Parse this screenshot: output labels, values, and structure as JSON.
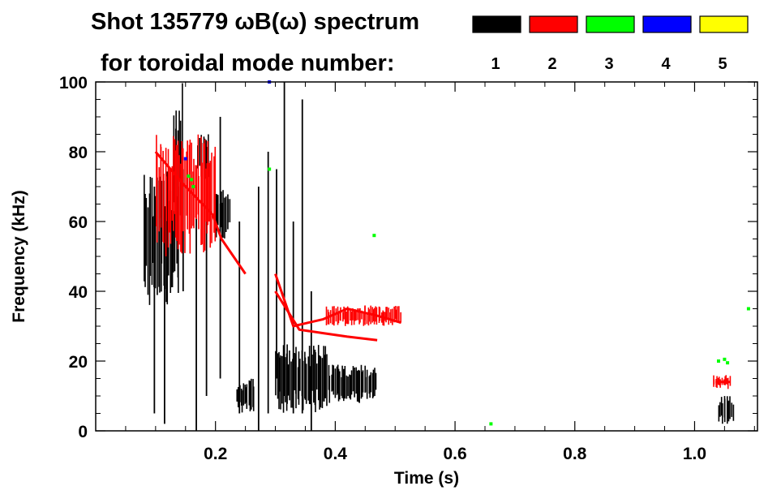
{
  "chart_data": {
    "type": "scatter",
    "title_line1": "Shot 135779 ωB(ω) spectrum",
    "title_line2": "for toroidal mode number:",
    "xlabel": "Time (s)",
    "ylabel": "Frequency (kHz)",
    "xlim": [
      0.0,
      1.105
    ],
    "ylim": [
      0,
      100
    ],
    "x_ticks": [
      {
        "value": 0.2,
        "label": "0.2"
      },
      {
        "value": 0.4,
        "label": "0.4"
      },
      {
        "value": 0.6,
        "label": "0.6"
      },
      {
        "value": 0.8,
        "label": "0.8"
      },
      {
        "value": 1.0,
        "label": "1.0"
      }
    ],
    "y_ticks": [
      {
        "value": 0,
        "label": "0"
      },
      {
        "value": 20,
        "label": "20"
      },
      {
        "value": 40,
        "label": "40"
      },
      {
        "value": 60,
        "label": "60"
      },
      {
        "value": 80,
        "label": "80"
      },
      {
        "value": 100,
        "label": "100"
      }
    ],
    "grid": false,
    "legend_position": "top-right",
    "series": [
      {
        "name": "1",
        "color": "#000000",
        "regions": [
          {
            "x": [
              0.08,
              0.14
            ],
            "y": [
              35,
              75
            ]
          },
          {
            "x": [
              0.13,
              0.145
            ],
            "y": [
              60,
              100
            ]
          },
          {
            "x": [
              0.17,
              0.19
            ],
            "y": [
              72,
              85
            ]
          },
          {
            "x": [
              0.2,
              0.225
            ],
            "y": [
              55,
              70
            ]
          },
          {
            "x": [
              0.235,
              0.265
            ],
            "y": [
              5,
              15
            ]
          },
          {
            "x": [
              0.3,
              0.39
            ],
            "y": [
              5,
              25
            ]
          },
          {
            "x": [
              0.39,
              0.47
            ],
            "y": [
              8,
              19
            ]
          },
          {
            "x": [
              1.04,
              1.065
            ],
            "y": [
              2,
              10
            ]
          }
        ],
        "streaks": [
          {
            "x": 0.098,
            "y": [
              5,
              70
            ]
          },
          {
            "x": 0.115,
            "y": [
              2,
              60
            ]
          },
          {
            "x": 0.146,
            "y": [
              40,
              75
            ]
          },
          {
            "x": 0.168,
            "y": [
              0,
              70
            ]
          },
          {
            "x": 0.185,
            "y": [
              10,
              80
            ]
          },
          {
            "x": 0.208,
            "y": [
              15,
              90
            ]
          },
          {
            "x": 0.24,
            "y": [
              5,
              60
            ]
          },
          {
            "x": 0.272,
            "y": [
              0,
              70
            ]
          },
          {
            "x": 0.288,
            "y": [
              5,
              80
            ]
          },
          {
            "x": 0.302,
            "y": [
              15,
              75
            ]
          },
          {
            "x": 0.315,
            "y": [
              10,
              100
            ]
          },
          {
            "x": 0.33,
            "y": [
              5,
              60
            ]
          },
          {
            "x": 0.345,
            "y": [
              5,
              95
            ]
          },
          {
            "x": 0.36,
            "y": [
              0,
              40
            ]
          }
        ]
      },
      {
        "name": "2",
        "color": "#ff0000",
        "curves": [
          {
            "x": [
              0.1,
              0.15,
              0.195,
              0.21,
              0.25
            ],
            "y": [
              80,
              70,
              62,
              55,
              45
            ]
          },
          {
            "x": [
              0.3,
              0.33,
              0.38,
              0.42,
              0.47,
              0.51
            ],
            "y": [
              45,
              30,
              32,
              35,
              33,
              31
            ]
          },
          {
            "x": [
              0.3,
              0.34,
              0.38,
              0.42,
              0.47
            ],
            "y": [
              40,
              29,
              28,
              27,
              26
            ]
          },
          {
            "x": [
              1.035,
              1.06
            ],
            "y": [
              14,
              14
            ]
          }
        ],
        "regions": [
          {
            "x": [
              0.1,
              0.2
            ],
            "y": [
              50,
              85
            ]
          },
          {
            "x": [
              0.385,
              0.51
            ],
            "y": [
              30,
              36
            ]
          },
          {
            "x": [
              1.03,
              1.06
            ],
            "y": [
              12,
              16
            ]
          }
        ]
      },
      {
        "name": "3",
        "color": "#00ff00",
        "points": [
          {
            "x": 0.155,
            "y": 73
          },
          {
            "x": 0.16,
            "y": 72
          },
          {
            "x": 0.163,
            "y": 70
          },
          {
            "x": 0.29,
            "y": 75
          },
          {
            "x": 0.465,
            "y": 56
          },
          {
            "x": 1.04,
            "y": 20
          },
          {
            "x": 1.05,
            "y": 20.5
          },
          {
            "x": 1.055,
            "y": 19.5
          },
          {
            "x": 1.09,
            "y": 35
          },
          {
            "x": 0.66,
            "y": 2
          }
        ]
      },
      {
        "name": "4",
        "color": "#0000ff",
        "points": [
          {
            "x": 0.15,
            "y": 78
          },
          {
            "x": 0.29,
            "y": 100
          }
        ]
      },
      {
        "name": "5",
        "color": "#ffff00",
        "points": []
      }
    ]
  }
}
